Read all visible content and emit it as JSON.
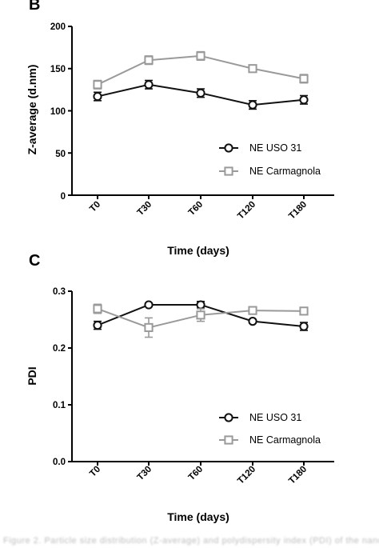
{
  "chart_data": [
    {
      "panel_label": "B",
      "type": "line",
      "categories": [
        "T0",
        "T30",
        "T60",
        "T120",
        "T180"
      ],
      "xlabel": "Time (days)",
      "ylabel": "Z-average (d.nm)",
      "ylim": [
        0,
        200
      ],
      "yticks": [
        "0",
        "50",
        "100",
        "150",
        "200"
      ],
      "grid": false,
      "legend_position": "lower-right",
      "series": [
        {
          "name": "NE USO 31",
          "marker": "circle",
          "color": "#111111",
          "values": [
            117,
            131,
            121,
            107,
            113
          ],
          "errors": [
            5,
            5,
            5,
            5,
            5
          ]
        },
        {
          "name": "NE Carmagnola",
          "marker": "square",
          "color": "#9a9a9a",
          "values": [
            131,
            160,
            165,
            150,
            138
          ],
          "errors": [
            5,
            5,
            5,
            4,
            5
          ]
        }
      ]
    },
    {
      "panel_label": "C",
      "type": "line",
      "categories": [
        "T0",
        "T30",
        "T60",
        "T120",
        "T180"
      ],
      "xlabel": "Time (days)",
      "ylabel": "PDI",
      "ylim": [
        0,
        0.3
      ],
      "yticks": [
        "0.0",
        "0.1",
        "0.2",
        "0.3"
      ],
      "grid": false,
      "legend_position": "lower-right",
      "series": [
        {
          "name": "NE USO 31",
          "marker": "circle",
          "color": "#111111",
          "values": [
            0.24,
            0.276,
            0.276,
            0.247,
            0.238
          ],
          "errors": [
            0.007,
            0.003,
            0.006,
            0.003,
            0.007
          ]
        },
        {
          "name": "NE Carmagnola",
          "marker": "square",
          "color": "#9a9a9a",
          "values": [
            0.269,
            0.236,
            0.258,
            0.266,
            0.265
          ],
          "errors": [
            0.008,
            0.017,
            0.011,
            0.005,
            0.004
          ]
        }
      ]
    }
  ]
}
